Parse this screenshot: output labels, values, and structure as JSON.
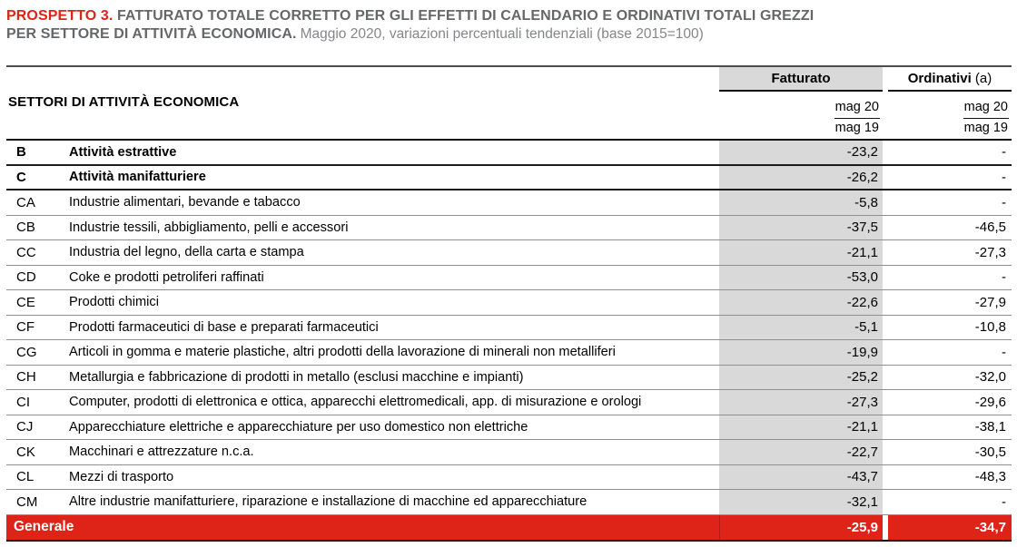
{
  "title": {
    "prospetto": "PROSPETTO 3.",
    "heading_line1": "FATTURATO TOTALE CORRETTO PER GLI EFFETTI DI CALENDARIO E ORDINATIVI TOTALI GREZZI",
    "heading_line2": "PER SETTORE DI ATTIVITÀ ECONOMICA.",
    "subtitle": "Maggio 2020, variazioni percentuali tendenziali (base 2015=100)"
  },
  "table": {
    "row_header": "SETTORI DI ATTIVITÀ ECONOMICA",
    "columns": [
      {
        "label": "Fatturato",
        "suffix": "",
        "period_top": "mag 20",
        "period_bottom": "mag 19"
      },
      {
        "label": "Ordinativi",
        "suffix": "(a)",
        "period_top": "mag 20",
        "period_bottom": "mag 19"
      }
    ],
    "rows": [
      {
        "code": "B",
        "label": "Attività estrattive",
        "fatturato": "-23,2",
        "ordinativi": "-",
        "section": true
      },
      {
        "code": "C",
        "label": "Attività manifatturiere",
        "fatturato": "-26,2",
        "ordinativi": "-",
        "section": true
      },
      {
        "code": "CA",
        "label": "Industrie alimentari, bevande e tabacco",
        "fatturato": "-5,8",
        "ordinativi": "-"
      },
      {
        "code": "CB",
        "label": "Industrie tessili, abbigliamento, pelli e accessori",
        "fatturato": "-37,5",
        "ordinativi": "-46,5"
      },
      {
        "code": "CC",
        "label": "Industria del legno, della carta e stampa",
        "fatturato": "-21,1",
        "ordinativi": "-27,3"
      },
      {
        "code": "CD",
        "label": "Coke e prodotti petroliferi raffinati",
        "fatturato": "-53,0",
        "ordinativi": "-"
      },
      {
        "code": "CE",
        "label": "Prodotti chimici",
        "fatturato": "-22,6",
        "ordinativi": "-27,9"
      },
      {
        "code": "CF",
        "label": "Prodotti farmaceutici di base e preparati farmaceutici",
        "fatturato": "-5,1",
        "ordinativi": "-10,8"
      },
      {
        "code": "CG",
        "label": "Articoli in gomma e materie plastiche, altri prodotti della lavorazione di minerali non metalliferi",
        "fatturato": "-19,9",
        "ordinativi": "-"
      },
      {
        "code": "CH",
        "label": "Metallurgia e fabbricazione di prodotti in metallo (esclusi macchine e impianti)",
        "fatturato": "-25,2",
        "ordinativi": "-32,0"
      },
      {
        "code": "CI",
        "label": "Computer, prodotti di elettronica e ottica, apparecchi elettromedicali, app. di misurazione e orologi",
        "fatturato": "-27,3",
        "ordinativi": "-29,6"
      },
      {
        "code": "CJ",
        "label": "Apparecchiature elettriche e apparecchiature per uso domestico non elettriche",
        "fatturato": "-21,1",
        "ordinativi": "-38,1"
      },
      {
        "code": "CK",
        "label": "Macchinari e attrezzature n.c.a.",
        "fatturato": "-22,7",
        "ordinativi": "-30,5"
      },
      {
        "code": "CL",
        "label": "Mezzi di trasporto",
        "fatturato": "-43,7",
        "ordinativi": "-48,3"
      },
      {
        "code": "CM",
        "label": "Altre industrie manifatturiere, riparazione e installazione di macchine ed apparecchiature",
        "fatturato": "-32,1",
        "ordinativi": "-"
      }
    ],
    "total_row": {
      "label": "Generale",
      "fatturato": "-25,9",
      "ordinativi": "-34,7"
    }
  },
  "colors": {
    "accent_red": "#de2318",
    "title_gray": "#66676b",
    "subtitle_gray": "#85868a",
    "column_gray": "#d9d9d9",
    "total_text": "#ffffff"
  }
}
